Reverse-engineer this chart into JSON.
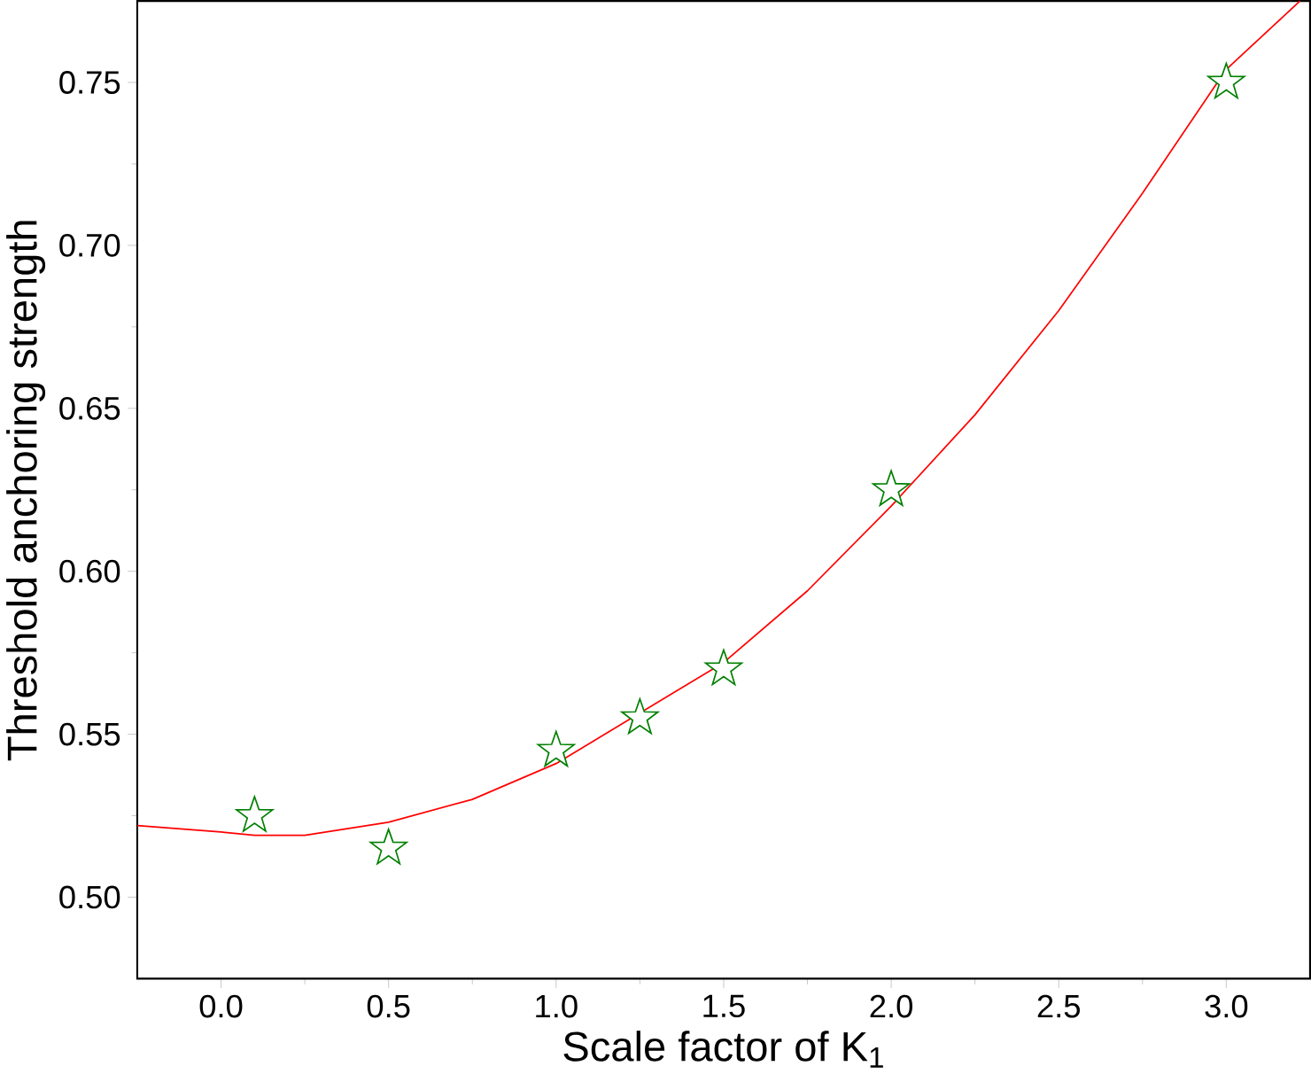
{
  "chart_data": {
    "type": "scatter",
    "xlabel": "Scale factor of K$_{1}$",
    "ylabel": "Threshold  anchoring  strength",
    "xlim": [
      -0.25,
      3.25
    ],
    "ylim": [
      0.475,
      0.775
    ],
    "xticks": [
      {
        "value": 0,
        "label": "0.0"
      },
      0.5,
      {
        "value": 1,
        "label": "1.0"
      },
      1.5,
      {
        "value": 2,
        "label": "2.0"
      },
      2.5,
      {
        "value": 3,
        "label": "3.0"
      }
    ],
    "yticks": [
      {
        "value": 0.5,
        "label": "0.50"
      },
      0.55,
      {
        "value": 0.6,
        "label": "0.60"
      },
      0.65,
      {
        "value": 0.7,
        "label": "0.70"
      },
      0.75
    ],
    "grid": false,
    "series": [
      {
        "marker": "star",
        "color": "#008000",
        "x": [
          0.1,
          0.5,
          1.0,
          1.25,
          1.5,
          2.0,
          3.0
        ],
        "values": [
          0.525,
          0.515,
          0.545,
          0.555,
          0.57,
          0.625,
          0.75
        ]
      },
      {
        "type": "line",
        "marker": "none",
        "color": "#ff0000",
        "x": [
          -0.25,
          0,
          0.1,
          0.25,
          0.5,
          0.75,
          1.0,
          1.5,
          1.75,
          2.0,
          2.25,
          2.5,
          2.75,
          3.0,
          3.22
        ],
        "values": [
          0.522,
          0.52,
          0.519,
          0.519,
          0.523,
          0.53,
          0.541,
          0.572,
          0.594,
          0.62,
          0.648,
          0.68,
          0.716,
          0.754,
          0.775
        ]
      }
    ]
  }
}
